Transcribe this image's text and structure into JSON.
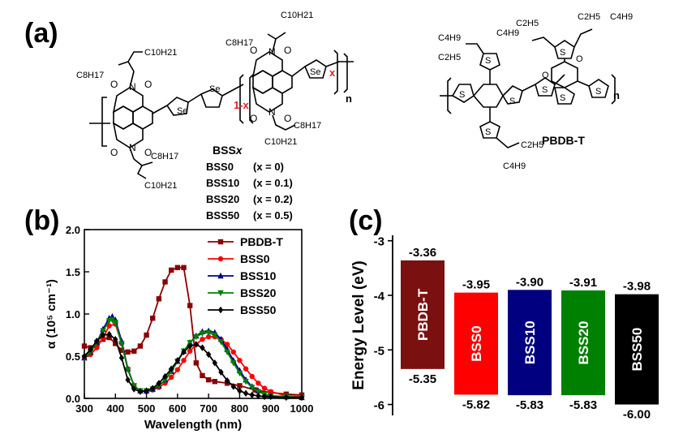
{
  "figure": {
    "panel_a": "(a)",
    "panel_b": "(b)",
    "panel_c": "(c)"
  },
  "structures": {
    "bssx": {
      "name": "BSS",
      "name_x": "x",
      "c10h21": "C10H21",
      "c8h17": "C8H17",
      "se": "Se",
      "n": "N",
      "o": "O",
      "one_minus_x": "1-x",
      "x_sub": "x",
      "n_sub": "n",
      "variants": [
        {
          "name": "BSS0",
          "value": "(x = 0)"
        },
        {
          "name": "BSS10",
          "value": "(x = 0.1)"
        },
        {
          "name": "BSS20",
          "value": "(x = 0.2)"
        },
        {
          "name": "BSS50",
          "value": "(x = 0.5)"
        }
      ]
    },
    "pbdbt": {
      "name": "PBDB-T",
      "c2h5": "C2H5",
      "c4h9": "C4H9",
      "s": "S",
      "o": "O",
      "n_sub": "n"
    }
  },
  "chart_data": [
    {
      "type": "line",
      "panel": "(b)",
      "xlabel": "Wavelength (nm)",
      "ylabel": "α (10⁵ cm⁻¹)",
      "xlim": [
        300,
        1000
      ],
      "ylim": [
        0,
        2.0
      ],
      "xticks": [
        "300",
        "400",
        "500",
        "600",
        "700",
        "800",
        "900",
        "1000"
      ],
      "yticks": [
        "0.0",
        "0.5",
        "1.0",
        "1.5",
        "2.0"
      ],
      "legend_position": "top-right",
      "series": [
        {
          "name": "PBDB-T",
          "color": "#8b0000",
          "marker": "square",
          "x": [
            300,
            320,
            340,
            360,
            380,
            400,
            420,
            440,
            460,
            480,
            500,
            520,
            540,
            560,
            580,
            600,
            620,
            640,
            660,
            680,
            700,
            720,
            760,
            800,
            850,
            900,
            950,
            1000
          ],
          "y": [
            0.62,
            0.6,
            0.64,
            0.7,
            0.72,
            0.65,
            0.57,
            0.55,
            0.56,
            0.62,
            0.75,
            0.95,
            1.18,
            1.38,
            1.52,
            1.55,
            1.55,
            1.1,
            0.42,
            0.27,
            0.22,
            0.2,
            0.18,
            0.15,
            0.1,
            0.07,
            0.05,
            0.04
          ]
        },
        {
          "name": "BSS0",
          "color": "#ff0000",
          "marker": "circle",
          "x": [
            300,
            320,
            340,
            360,
            380,
            400,
            420,
            440,
            460,
            480,
            500,
            520,
            540,
            560,
            580,
            600,
            620,
            640,
            660,
            680,
            700,
            720,
            740,
            760,
            780,
            800,
            820,
            840,
            860,
            880,
            900,
            950,
            1000
          ],
          "y": [
            0.48,
            0.52,
            0.6,
            0.72,
            0.86,
            0.88,
            0.65,
            0.35,
            0.15,
            0.09,
            0.08,
            0.1,
            0.13,
            0.18,
            0.25,
            0.34,
            0.45,
            0.56,
            0.64,
            0.7,
            0.73,
            0.73,
            0.7,
            0.64,
            0.55,
            0.45,
            0.35,
            0.26,
            0.18,
            0.12,
            0.08,
            0.03,
            0.02
          ]
        },
        {
          "name": "BSS10",
          "color": "#00008b",
          "marker": "triangle",
          "x": [
            300,
            320,
            340,
            360,
            380,
            390,
            400,
            420,
            440,
            460,
            480,
            500,
            520,
            540,
            560,
            580,
            600,
            620,
            640,
            660,
            680,
            700,
            720,
            740,
            760,
            780,
            800,
            820,
            840,
            860,
            880,
            900,
            950,
            1000
          ],
          "y": [
            0.48,
            0.55,
            0.66,
            0.82,
            0.95,
            0.97,
            0.93,
            0.68,
            0.35,
            0.15,
            0.09,
            0.09,
            0.11,
            0.15,
            0.22,
            0.32,
            0.44,
            0.56,
            0.66,
            0.74,
            0.79,
            0.8,
            0.78,
            0.7,
            0.58,
            0.45,
            0.33,
            0.22,
            0.14,
            0.09,
            0.05,
            0.03,
            0.02,
            0.01
          ]
        },
        {
          "name": "BSS20",
          "color": "#008000",
          "marker": "triangle-down",
          "x": [
            300,
            320,
            340,
            360,
            380,
            390,
            400,
            420,
            440,
            460,
            480,
            500,
            520,
            540,
            560,
            580,
            600,
            620,
            640,
            660,
            680,
            700,
            720,
            740,
            760,
            780,
            800,
            820,
            840,
            860,
            880,
            900,
            950,
            1000
          ],
          "y": [
            0.48,
            0.55,
            0.66,
            0.8,
            0.92,
            0.93,
            0.9,
            0.65,
            0.34,
            0.15,
            0.09,
            0.09,
            0.11,
            0.15,
            0.22,
            0.32,
            0.44,
            0.56,
            0.66,
            0.73,
            0.77,
            0.78,
            0.75,
            0.67,
            0.55,
            0.42,
            0.3,
            0.2,
            0.13,
            0.08,
            0.05,
            0.03,
            0.02,
            0.01
          ]
        },
        {
          "name": "BSS50",
          "color": "#000000",
          "marker": "diamond",
          "x": [
            300,
            320,
            340,
            360,
            380,
            400,
            420,
            440,
            460,
            480,
            500,
            520,
            540,
            560,
            580,
            600,
            620,
            640,
            660,
            680,
            700,
            720,
            740,
            760,
            780,
            800,
            820,
            840,
            860,
            880,
            900,
            950,
            1000
          ],
          "y": [
            0.5,
            0.58,
            0.68,
            0.75,
            0.76,
            0.7,
            0.48,
            0.22,
            0.11,
            0.08,
            0.09,
            0.12,
            0.18,
            0.26,
            0.35,
            0.45,
            0.55,
            0.62,
            0.64,
            0.6,
            0.52,
            0.42,
            0.31,
            0.21,
            0.14,
            0.09,
            0.06,
            0.04,
            0.03,
            0.02,
            0.02,
            0.01,
            0.01
          ]
        }
      ]
    },
    {
      "type": "bar",
      "panel": "(c)",
      "ylabel": "Energy Level (eV)",
      "ylim": [
        -6.2,
        -2.9
      ],
      "yticks": [
        "-3",
        "-4",
        "-5",
        "-6"
      ],
      "categories": [
        "PBDB-T",
        "BSS0",
        "BSS10",
        "BSS20",
        "BSS50"
      ],
      "lumo": [
        -3.36,
        -3.95,
        -3.9,
        -3.91,
        -3.98
      ],
      "homo": [
        -5.35,
        -5.82,
        -5.83,
        -5.83,
        -6.0
      ],
      "lumo_labels": [
        "-3.36",
        "-3.95",
        "-3.90",
        "-3.91",
        "-3.98"
      ],
      "homo_labels": [
        "-5.35",
        "-5.82",
        "-5.83",
        "-5.83",
        "-6.00"
      ],
      "colors": [
        "#7b1010",
        "#ff0000",
        "#000080",
        "#008000",
        "#000000"
      ]
    }
  ]
}
